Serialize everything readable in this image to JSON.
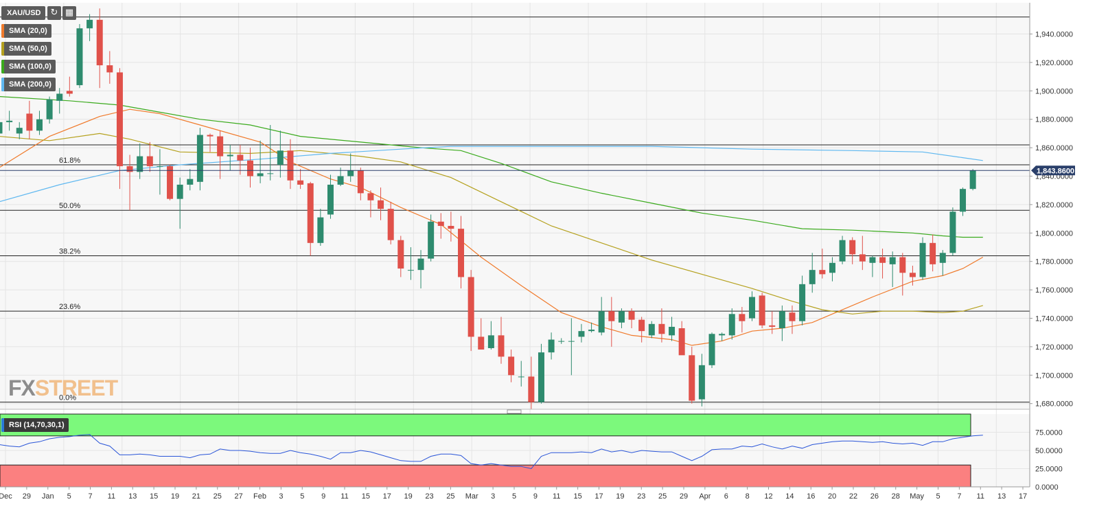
{
  "toolbar": {
    "symbol": "XAU/USD",
    "refresh_icon": "refresh-icon",
    "calendar_icon": "calendar-icon",
    "indicators": [
      {
        "label": "SMA (20,0)",
        "color": "#f07a2b"
      },
      {
        "label": "SMA (50,0)",
        "color": "#b5a11e"
      },
      {
        "label": "SMA (100,0)",
        "color": "#3aaa1c"
      },
      {
        "label": "SMA (200,0)",
        "color": "#5fb8f0"
      }
    ]
  },
  "logo": {
    "part1": "FX",
    "part2": "STREET"
  },
  "price_panel": {
    "current_price_label": "1,843.8600",
    "y_ticks": [
      "1,680.0000",
      "1,700.0000",
      "1,720.0000",
      "1,740.0000",
      "1,760.0000",
      "1,780.0000",
      "1,800.0000",
      "1,820.0000",
      "1,840.0000",
      "1,860.0000",
      "1,880.0000",
      "1,900.0000",
      "1,920.0000",
      "1,940.0000"
    ]
  },
  "rsi_panel": {
    "label": "RSI (14,70,30,1)",
    "y_ticks": [
      "0.0000",
      "25.0000",
      "50.0000",
      "75.0000"
    ]
  },
  "x_ticks": [
    "Dec",
    "29",
    "Jan",
    "5",
    "7",
    "11",
    "13",
    "15",
    "19",
    "21",
    "25",
    "27",
    "Feb",
    "3",
    "5",
    "9",
    "11",
    "15",
    "17",
    "19",
    "23",
    "25",
    "Mar",
    "3",
    "5",
    "9",
    "11",
    "15",
    "17",
    "19",
    "23",
    "25",
    "29",
    "Apr",
    "6",
    "8",
    "12",
    "14",
    "16",
    "20",
    "22",
    "26",
    "28",
    "May",
    "5",
    "7",
    "11",
    "13",
    "17"
  ],
  "chart_data": {
    "type": "candlestick",
    "symbol": "XAU/USD",
    "ylim": [
      1676,
      1962
    ],
    "candles": [
      {
        "o": 1870,
        "h": 1884,
        "l": 1866,
        "c": 1878
      },
      {
        "o": 1878,
        "h": 1886,
        "l": 1872,
        "c": 1879
      },
      {
        "o": 1870,
        "h": 1878,
        "l": 1866,
        "c": 1874
      },
      {
        "o": 1884,
        "h": 1893,
        "l": 1866,
        "c": 1872
      },
      {
        "o": 1872,
        "h": 1886,
        "l": 1869,
        "c": 1880
      },
      {
        "o": 1880,
        "h": 1896,
        "l": 1877,
        "c": 1894
      },
      {
        "o": 1893,
        "h": 1902,
        "l": 1884,
        "c": 1898
      },
      {
        "o": 1900,
        "h": 1910,
        "l": 1896,
        "c": 1898
      },
      {
        "o": 1904,
        "h": 1947,
        "l": 1902,
        "c": 1944
      },
      {
        "o": 1944,
        "h": 1954,
        "l": 1935,
        "c": 1950
      },
      {
        "o": 1950,
        "h": 1958,
        "l": 1902,
        "c": 1918
      },
      {
        "o": 1918,
        "h": 1928,
        "l": 1905,
        "c": 1913
      },
      {
        "o": 1913,
        "h": 1916,
        "l": 1831,
        "c": 1847
      },
      {
        "o": 1847,
        "h": 1855,
        "l": 1816,
        "c": 1843
      },
      {
        "o": 1843,
        "h": 1863,
        "l": 1838,
        "c": 1854
      },
      {
        "o": 1854,
        "h": 1864,
        "l": 1843,
        "c": 1847
      },
      {
        "o": 1847,
        "h": 1859,
        "l": 1827,
        "c": 1847
      },
      {
        "o": 1847,
        "h": 1848,
        "l": 1823,
        "c": 1824
      },
      {
        "o": 1824,
        "h": 1839,
        "l": 1803,
        "c": 1834
      },
      {
        "o": 1834,
        "h": 1845,
        "l": 1830,
        "c": 1838
      },
      {
        "o": 1836,
        "h": 1874,
        "l": 1830,
        "c": 1869
      },
      {
        "o": 1869,
        "h": 1870,
        "l": 1857,
        "c": 1868
      },
      {
        "o": 1868,
        "h": 1872,
        "l": 1838,
        "c": 1854
      },
      {
        "o": 1854,
        "h": 1862,
        "l": 1844,
        "c": 1855
      },
      {
        "o": 1855,
        "h": 1862,
        "l": 1841,
        "c": 1851
      },
      {
        "o": 1851,
        "h": 1860,
        "l": 1832,
        "c": 1840
      },
      {
        "o": 1840,
        "h": 1865,
        "l": 1835,
        "c": 1842
      },
      {
        "o": 1842,
        "h": 1876,
        "l": 1837,
        "c": 1842
      },
      {
        "o": 1848,
        "h": 1872,
        "l": 1839,
        "c": 1858
      },
      {
        "o": 1858,
        "h": 1866,
        "l": 1831,
        "c": 1837
      },
      {
        "o": 1837,
        "h": 1845,
        "l": 1831,
        "c": 1834
      },
      {
        "o": 1835,
        "h": 1836,
        "l": 1784,
        "c": 1793
      },
      {
        "o": 1793,
        "h": 1817,
        "l": 1791,
        "c": 1811
      },
      {
        "o": 1813,
        "h": 1841,
        "l": 1810,
        "c": 1834
      },
      {
        "o": 1834,
        "h": 1846,
        "l": 1833,
        "c": 1840
      },
      {
        "o": 1840,
        "h": 1856,
        "l": 1836,
        "c": 1844
      },
      {
        "o": 1844,
        "h": 1846,
        "l": 1823,
        "c": 1828
      },
      {
        "o": 1828,
        "h": 1830,
        "l": 1811,
        "c": 1823
      },
      {
        "o": 1823,
        "h": 1832,
        "l": 1809,
        "c": 1817
      },
      {
        "o": 1817,
        "h": 1822,
        "l": 1792,
        "c": 1795
      },
      {
        "o": 1795,
        "h": 1798,
        "l": 1769,
        "c": 1775
      },
      {
        "o": 1774,
        "h": 1790,
        "l": 1767,
        "c": 1774
      },
      {
        "o": 1774,
        "h": 1788,
        "l": 1761,
        "c": 1782
      },
      {
        "o": 1782,
        "h": 1813,
        "l": 1780,
        "c": 1808
      },
      {
        "o": 1808,
        "h": 1814,
        "l": 1796,
        "c": 1805
      },
      {
        "o": 1805,
        "h": 1815,
        "l": 1794,
        "c": 1803
      },
      {
        "o": 1803,
        "h": 1812,
        "l": 1761,
        "c": 1769
      },
      {
        "o": 1769,
        "h": 1774,
        "l": 1717,
        "c": 1727
      },
      {
        "o": 1727,
        "h": 1740,
        "l": 1720,
        "c": 1718
      },
      {
        "o": 1719,
        "h": 1738,
        "l": 1718,
        "c": 1728
      },
      {
        "o": 1728,
        "h": 1741,
        "l": 1708,
        "c": 1713
      },
      {
        "o": 1713,
        "h": 1718,
        "l": 1695,
        "c": 1700
      },
      {
        "o": 1699,
        "h": 1710,
        "l": 1692,
        "c": 1699
      },
      {
        "o": 1699,
        "h": 1713,
        "l": 1676,
        "c": 1681
      },
      {
        "o": 1681,
        "h": 1722,
        "l": 1680,
        "c": 1716
      },
      {
        "o": 1716,
        "h": 1730,
        "l": 1711,
        "c": 1725
      },
      {
        "o": 1724,
        "h": 1726,
        "l": 1722,
        "c": 1724
      },
      {
        "o": 1724,
        "h": 1740,
        "l": 1700,
        "c": 1724
      },
      {
        "o": 1727,
        "h": 1736,
        "l": 1723,
        "c": 1731
      },
      {
        "o": 1731,
        "h": 1737,
        "l": 1730,
        "c": 1732
      },
      {
        "o": 1730,
        "h": 1755,
        "l": 1728,
        "c": 1745
      },
      {
        "o": 1745,
        "h": 1755,
        "l": 1720,
        "c": 1738
      },
      {
        "o": 1737,
        "h": 1747,
        "l": 1733,
        "c": 1745
      },
      {
        "o": 1745,
        "h": 1747,
        "l": 1733,
        "c": 1739
      },
      {
        "o": 1739,
        "h": 1741,
        "l": 1723,
        "c": 1731
      },
      {
        "o": 1728,
        "h": 1738,
        "l": 1726,
        "c": 1736
      },
      {
        "o": 1736,
        "h": 1747,
        "l": 1723,
        "c": 1729
      },
      {
        "o": 1728,
        "h": 1741,
        "l": 1724,
        "c": 1734
      },
      {
        "o": 1733,
        "h": 1738,
        "l": 1716,
        "c": 1714
      },
      {
        "o": 1714,
        "h": 1720,
        "l": 1680,
        "c": 1682
      },
      {
        "o": 1683,
        "h": 1715,
        "l": 1678,
        "c": 1707
      },
      {
        "o": 1707,
        "h": 1730,
        "l": 1705,
        "c": 1729
      },
      {
        "o": 1728,
        "h": 1730,
        "l": 1724,
        "c": 1729
      },
      {
        "o": 1728,
        "h": 1747,
        "l": 1725,
        "c": 1743
      },
      {
        "o": 1743,
        "h": 1748,
        "l": 1730,
        "c": 1738
      },
      {
        "o": 1740,
        "h": 1759,
        "l": 1738,
        "c": 1755
      },
      {
        "o": 1756,
        "h": 1758,
        "l": 1733,
        "c": 1735
      },
      {
        "o": 1735,
        "h": 1745,
        "l": 1729,
        "c": 1734
      },
      {
        "o": 1733,
        "h": 1749,
        "l": 1724,
        "c": 1745
      },
      {
        "o": 1744,
        "h": 1749,
        "l": 1729,
        "c": 1738
      },
      {
        "o": 1738,
        "h": 1770,
        "l": 1735,
        "c": 1764
      },
      {
        "o": 1764,
        "h": 1786,
        "l": 1758,
        "c": 1774
      },
      {
        "o": 1774,
        "h": 1789,
        "l": 1768,
        "c": 1771
      },
      {
        "o": 1772,
        "h": 1783,
        "l": 1766,
        "c": 1779
      },
      {
        "o": 1780,
        "h": 1798,
        "l": 1778,
        "c": 1795
      },
      {
        "o": 1795,
        "h": 1797,
        "l": 1778,
        "c": 1785
      },
      {
        "o": 1785,
        "h": 1798,
        "l": 1774,
        "c": 1780
      },
      {
        "o": 1779,
        "h": 1784,
        "l": 1769,
        "c": 1783
      },
      {
        "o": 1783,
        "h": 1789,
        "l": 1768,
        "c": 1779
      },
      {
        "o": 1778,
        "h": 1787,
        "l": 1762,
        "c": 1783
      },
      {
        "o": 1783,
        "h": 1786,
        "l": 1756,
        "c": 1772
      },
      {
        "o": 1772,
        "h": 1777,
        "l": 1763,
        "c": 1769
      },
      {
        "o": 1769,
        "h": 1797,
        "l": 1767,
        "c": 1793
      },
      {
        "o": 1793,
        "h": 1799,
        "l": 1773,
        "c": 1778
      },
      {
        "o": 1779,
        "h": 1788,
        "l": 1770,
        "c": 1786
      },
      {
        "o": 1786,
        "h": 1818,
        "l": 1784,
        "c": 1815
      },
      {
        "o": 1815,
        "h": 1832,
        "l": 1812,
        "c": 1831
      },
      {
        "o": 1831,
        "h": 1845,
        "l": 1830,
        "c": 1844
      }
    ],
    "sma": [
      {
        "name": "SMA (20,0)",
        "color": "#f07a2b",
        "points": [
          [
            0,
            1846
          ],
          [
            5,
            1868
          ],
          [
            10,
            1882
          ],
          [
            13,
            1887
          ],
          [
            16,
            1884
          ],
          [
            20,
            1876
          ],
          [
            26,
            1864
          ],
          [
            29,
            1850
          ],
          [
            33,
            1838
          ],
          [
            36,
            1832
          ],
          [
            40,
            1818
          ],
          [
            44,
            1806
          ],
          [
            48,
            1783
          ],
          [
            52,
            1763
          ],
          [
            56,
            1744
          ],
          [
            60,
            1734
          ],
          [
            63,
            1728
          ],
          [
            67,
            1725
          ],
          [
            69,
            1721
          ],
          [
            72,
            1724
          ],
          [
            75,
            1731
          ],
          [
            78,
            1733
          ],
          [
            81,
            1737
          ],
          [
            84,
            1746
          ],
          [
            87,
            1755
          ],
          [
            91,
            1766
          ],
          [
            94,
            1770
          ],
          [
            96,
            1775
          ],
          [
            98,
            1783
          ]
        ]
      },
      {
        "name": "SMA (50,0)",
        "color": "#b5a11e",
        "points": [
          [
            0,
            1868
          ],
          [
            5,
            1865
          ],
          [
            10,
            1870
          ],
          [
            13,
            1866
          ],
          [
            18,
            1857
          ],
          [
            25,
            1856
          ],
          [
            30,
            1858
          ],
          [
            36,
            1854
          ],
          [
            40,
            1850
          ],
          [
            45,
            1839
          ],
          [
            50,
            1822
          ],
          [
            55,
            1805
          ],
          [
            60,
            1793
          ],
          [
            65,
            1781
          ],
          [
            70,
            1771
          ],
          [
            75,
            1761
          ],
          [
            79,
            1752
          ],
          [
            82,
            1746
          ],
          [
            85,
            1743
          ],
          [
            88,
            1745
          ],
          [
            91,
            1745
          ],
          [
            94,
            1744
          ],
          [
            96,
            1745
          ],
          [
            98,
            1749
          ]
        ]
      },
      {
        "name": "SMA (100,0)",
        "color": "#3aaa1c",
        "points": [
          [
            0,
            1896
          ],
          [
            7,
            1893
          ],
          [
            12,
            1890
          ],
          [
            16,
            1885
          ],
          [
            20,
            1880
          ],
          [
            25,
            1876
          ],
          [
            30,
            1868
          ],
          [
            36,
            1864
          ],
          [
            42,
            1860
          ],
          [
            46,
            1858
          ],
          [
            50,
            1849
          ],
          [
            55,
            1836
          ],
          [
            60,
            1828
          ],
          [
            65,
            1821
          ],
          [
            70,
            1814
          ],
          [
            75,
            1809
          ],
          [
            80,
            1803
          ],
          [
            85,
            1802
          ],
          [
            91,
            1800
          ],
          [
            94,
            1798
          ],
          [
            96,
            1797
          ],
          [
            98,
            1797
          ]
        ]
      },
      {
        "name": "SMA (200,0)",
        "color": "#5fb8f0",
        "points": [
          [
            0,
            1822
          ],
          [
            6,
            1834
          ],
          [
            12,
            1844
          ],
          [
            18,
            1848
          ],
          [
            26,
            1852
          ],
          [
            33,
            1856
          ],
          [
            40,
            1859
          ],
          [
            45,
            1861
          ],
          [
            55,
            1861
          ],
          [
            65,
            1861
          ],
          [
            75,
            1859
          ],
          [
            85,
            1858
          ],
          [
            92,
            1857
          ],
          [
            96,
            1853
          ],
          [
            98,
            1851
          ]
        ]
      }
    ],
    "horizontal_levels": [
      {
        "label": "",
        "value": 1952
      },
      {
        "label": "61.8%",
        "value": 1848
      },
      {
        "label": "50.0%",
        "value": 1816
      },
      {
        "label": "38.2%",
        "value": 1784
      },
      {
        "label": "23.6%",
        "value": 1745
      },
      {
        "label": "0.0%",
        "value": 1681
      },
      {
        "label": "",
        "value": 1862
      }
    ],
    "rsi": {
      "overbought": 70,
      "oversold": 30,
      "ylim": [
        0,
        100
      ],
      "values": [
        58,
        56,
        55,
        60,
        62,
        66,
        68,
        69,
        71,
        72,
        60,
        56,
        44,
        44,
        45,
        44,
        42,
        42,
        42,
        40,
        44,
        45,
        52,
        50,
        50,
        49,
        47,
        46,
        46,
        50,
        47,
        45,
        42,
        38,
        47,
        47,
        50,
        48,
        44,
        40,
        36,
        35,
        35,
        42,
        45,
        45,
        43,
        32,
        30,
        32,
        30,
        28,
        28,
        25,
        42,
        47,
        47,
        47,
        48,
        47,
        52,
        48,
        50,
        47,
        50,
        49,
        48,
        48,
        42,
        36,
        42,
        51,
        52,
        52,
        56,
        55,
        59,
        55,
        52,
        56,
        53,
        58,
        60,
        62,
        63,
        63,
        62,
        61,
        62,
        60,
        59,
        60,
        57,
        62,
        62,
        66,
        68,
        70,
        71
      ]
    }
  }
}
